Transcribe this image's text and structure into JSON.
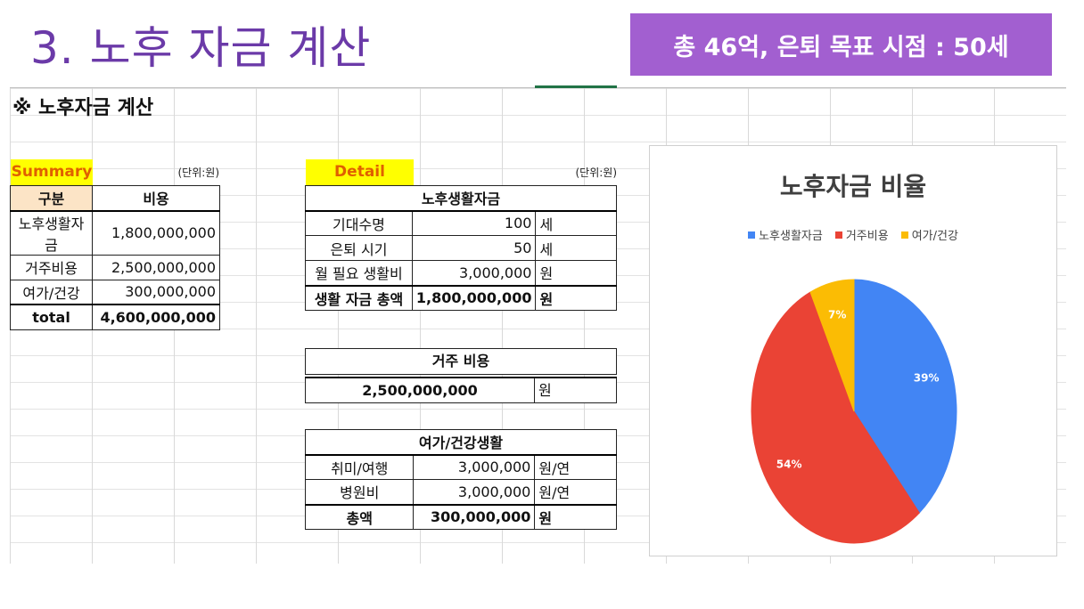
{
  "slide": {
    "title": "3. 노후 자금 계산",
    "banner": "총 46억, 은퇴 목표 시점  : 50세"
  },
  "sheet": {
    "heading": "※ 노후자금 계산",
    "summary": {
      "label": "Summary",
      "unit": "(단위:원)",
      "col_headers": [
        "구분",
        "비용"
      ],
      "rows": [
        {
          "name": "노후생활자금",
          "value": "1,800,000,000"
        },
        {
          "name": "거주비용",
          "value": "2,500,000,000"
        },
        {
          "name": "여가/건강",
          "value": "300,000,000"
        }
      ],
      "total": {
        "name": "total",
        "value": "4,600,000,000"
      }
    },
    "detail": {
      "label": "Detail",
      "unit": "(단위:원)",
      "living": {
        "title": "노후생활자금",
        "rows": [
          {
            "name": "기대수명",
            "value": "100",
            "unit": "세"
          },
          {
            "name": "은퇴 시기",
            "value": "50",
            "unit": "세"
          },
          {
            "name": "월 필요 생활비",
            "value": "3,000,000",
            "unit": "원"
          }
        ],
        "total": {
          "name": "생활 자금 총액",
          "value": "1,800,000,000",
          "unit": "원"
        }
      },
      "housing": {
        "title": "거주 비용",
        "value": "2,500,000,000",
        "unit": "원"
      },
      "leisure": {
        "title": "여가/건강생활",
        "rows": [
          {
            "name": "취미/여행",
            "value": "3,000,000",
            "unit": "원/연"
          },
          {
            "name": "병원비",
            "value": "3,000,000",
            "unit": "원/연"
          }
        ],
        "total": {
          "name": "총액",
          "value": "300,000,000",
          "unit": "원"
        }
      }
    }
  },
  "colors": {
    "title_purple": "#6b3aa8",
    "banner_purple": "#a25fd0",
    "highlight_yellow": "#ffff00",
    "header_peach": "#fce4c6"
  },
  "chart_data": {
    "type": "pie",
    "title": "노후자금 비율",
    "legend_position": "top",
    "series": [
      {
        "name": "노후생활자금",
        "value": 39,
        "label": "39%",
        "color": "#4285f4"
      },
      {
        "name": "거주비용",
        "value": 54,
        "label": "54%",
        "color": "#ea4335"
      },
      {
        "name": "여가/건강",
        "value": 7,
        "label": "7%",
        "color": "#fbbc04"
      }
    ]
  }
}
